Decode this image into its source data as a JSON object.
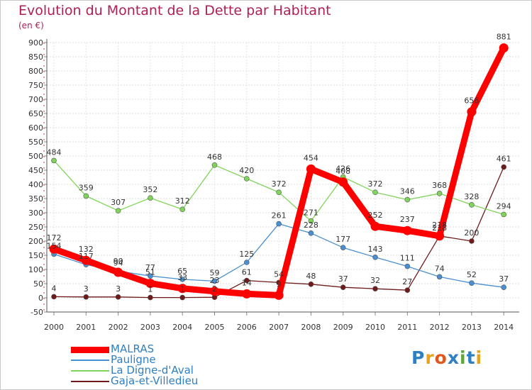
{
  "header": {
    "title": "Evolution du Montant de la Dette par Habitant",
    "subtitle": "(en €)"
  },
  "logo": {
    "text": "Proxiti",
    "letter_colors": [
      "#2e7fc4",
      "#e8a21c",
      "#e0591c",
      "#2e7fc4",
      "#5aa83a",
      "#2e7fc4",
      "#e8a21c"
    ]
  },
  "chart_data": {
    "type": "line",
    "x": [
      2000,
      2001,
      2002,
      2003,
      2004,
      2005,
      2006,
      2007,
      2008,
      2009,
      2010,
      2011,
      2012,
      2013,
      2014
    ],
    "ylim": [
      -50,
      900
    ],
    "yticks": [
      -50,
      0,
      50,
      100,
      150,
      200,
      250,
      300,
      350,
      400,
      450,
      500,
      550,
      600,
      650,
      700,
      750,
      800,
      850,
      900
    ],
    "grid": true,
    "legend_position": "bottom-left",
    "series": [
      {
        "name": "Gaja-et-Villedieu",
        "color": "#6e1a1a",
        "values": [
          4,
          3,
          3,
          1,
          1,
          2,
          61,
          54,
          48,
          37,
          32,
          27,
          218,
          200,
          461
        ]
      },
      {
        "name": "La Digne-d'Aval",
        "color": "#7fd45a",
        "values": [
          484,
          359,
          307,
          352,
          312,
          468,
          420,
          372,
          271,
          426,
          372,
          346,
          368,
          328,
          294
        ]
      },
      {
        "name": "Pauligne",
        "color": "#4a8fd0",
        "values": [
          154,
          117,
          94,
          77,
          65,
          59,
          125,
          261,
          228,
          177,
          143,
          111,
          74,
          52,
          37
        ]
      },
      {
        "name": "MALRAS",
        "color": "#ff0000",
        "values": [
          172,
          132,
          90,
          51,
          33,
          23,
          14,
          9,
          454,
          408,
          252,
          237,
          218,
          656,
          881
        ]
      }
    ],
    "point_labels": [
      [
        4,
        3,
        3,
        1,
        1,
        2,
        61,
        54,
        48,
        37,
        32,
        27,
        218,
        200,
        461
      ],
      [
        484,
        359,
        307,
        352,
        312,
        468,
        420,
        372,
        271,
        426,
        372,
        346,
        368,
        328,
        294
      ],
      [
        154,
        117,
        94,
        77,
        65,
        59,
        125,
        261,
        228,
        177,
        143,
        111,
        74,
        52,
        37
      ],
      [
        172,
        132,
        90,
        51,
        33,
        23,
        14,
        9,
        454,
        408,
        252,
        237,
        218,
        656,
        881
      ]
    ]
  },
  "legend": {
    "items": [
      "MALRAS",
      "Pauligne",
      "La Digne-d'Aval",
      "Gaja-et-Villedieu"
    ]
  }
}
